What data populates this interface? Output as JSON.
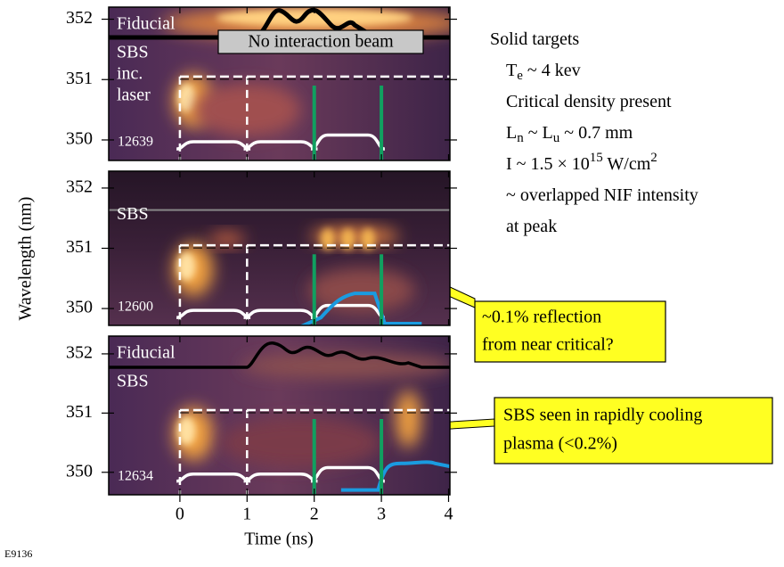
{
  "chart_data": [
    {
      "type": "streak",
      "xlim": [
        -1.06,
        4.02
      ],
      "ylim": [
        349.66,
        352.2
      ],
      "yticks": [
        350,
        351,
        352
      ],
      "xticks": [
        0,
        1,
        2,
        3,
        4
      ],
      "labels": [
        "Fiducial",
        "SBS",
        "inc.",
        "laser"
      ],
      "shot": "12639",
      "banner": "No interaction beam",
      "lines": {
        "white_dashed_x": [
          0,
          1
        ],
        "green_x": [
          2,
          3
        ],
        "dashed_y": 351.05
      }
    },
    {
      "type": "streak",
      "xlim": [
        -1.06,
        4.02
      ],
      "ylim": [
        349.72,
        352.28
      ],
      "yticks": [
        350,
        351,
        352
      ],
      "xticks": [
        0,
        1,
        2,
        3,
        4
      ],
      "labels": [
        "SBS"
      ],
      "shot": "12600",
      "lines": {
        "white_dashed_x": [
          0,
          1
        ],
        "green_x": [
          2,
          3
        ],
        "dashed_y": 351.05
      }
    },
    {
      "type": "streak",
      "xlim": [
        -1.06,
        4.02
      ],
      "ylim": [
        349.62,
        352.3
      ],
      "yticks": [
        350,
        351,
        352
      ],
      "xticks": [
        0,
        1,
        2,
        3,
        4
      ],
      "labels": [
        "Fiducial",
        "SBS"
      ],
      "shot": "12634",
      "lines": {
        "white_dashed_x": [
          0,
          1
        ],
        "green_x": [
          2,
          3
        ],
        "dashed_y": 351.05
      }
    }
  ],
  "y_label": "Wavelength (nm)",
  "x_label": "Time (ns)",
  "figure_id": "E9136",
  "notes": [
    [
      {
        "t": "Solid targets"
      }
    ],
    [
      {
        "t": "T"
      },
      {
        "sub": "e"
      },
      {
        "t": " ~ 4 kev"
      }
    ],
    [
      {
        "t": "Critical density present"
      }
    ],
    [
      {
        "t": "L"
      },
      {
        "sub": "n"
      },
      {
        "t": " ~ L"
      },
      {
        "sub": "u"
      },
      {
        "t": " ~ 0.7 mm"
      }
    ],
    [
      {
        "t": "I ~ 1.5 × 10"
      },
      {
        "sup": "15"
      },
      {
        "t": " W/cm"
      },
      {
        "sup": "2"
      }
    ],
    [
      {
        "t": "~ overlapped NIF intensity"
      }
    ],
    [
      {
        "t": "at peak"
      }
    ]
  ],
  "callouts": [
    [
      "~0.1% reflection",
      "from near critical?"
    ],
    [
      "SBS seen in rapidly cooling",
      "plasma (<0.2%)"
    ]
  ]
}
